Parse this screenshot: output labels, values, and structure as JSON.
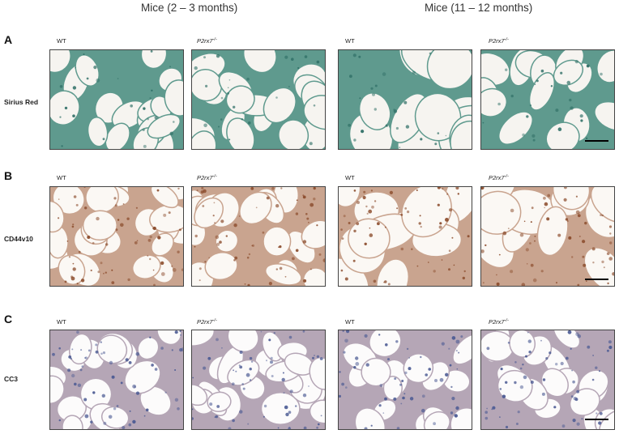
{
  "column_headers": [
    "Mice (2 – 3 months)",
    "Mice (11 – 12 months)"
  ],
  "genotypes": {
    "wt": "WT",
    "mutant": "P2rx7",
    "mutant_sup": "-/-"
  },
  "panels": [
    {
      "letter": "A",
      "label": "Sirius Red",
      "stain": "sirius",
      "colors": {
        "bg": "#f6f4f0",
        "wall": "#5f9a8e",
        "dot": "#2f6f66"
      }
    },
    {
      "letter": "B",
      "label": "CD44v10",
      "stain": "ihc-brown",
      "colors": {
        "bg": "#fbf8f4",
        "wall": "#c9a48f",
        "dot": "#8a4a2a"
      }
    },
    {
      "letter": "C",
      "label": "CC3",
      "stain": "ihc-blue",
      "colors": {
        "bg": "#fcfbfb",
        "wall": "#b5a6b6",
        "dot": "#4b5a93"
      }
    }
  ]
}
